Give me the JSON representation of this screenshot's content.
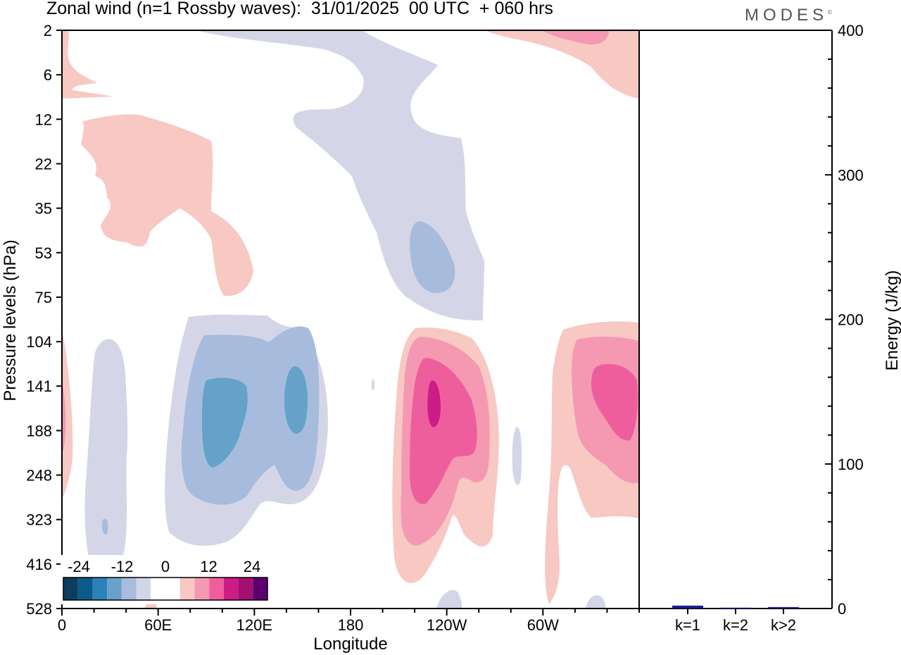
{
  "header": {
    "title": "Zonal wind (n=1 Rossby waves):  31/01/2025  00 UTC  + 060 hrs",
    "logo": "MODES"
  },
  "chart_data": [
    {
      "type": "heatmap",
      "title": "Zonal wind (n=1 Rossby waves):  31/01/2025  00 UTC  + 060 hrs",
      "xlabel": "Longitude",
      "ylabel": "Pressure levels (hPa)",
      "x_ticks": [
        "0",
        "60E",
        "120E",
        "180",
        "120W",
        "60W"
      ],
      "y_levels": [
        2,
        6,
        12,
        22,
        35,
        53,
        75,
        104,
        141,
        188,
        248,
        323,
        416,
        528
      ],
      "y_scale": "log (sigma-pressure levels), top = 2 hPa",
      "colorbar": {
        "tick_labels": [
          "-24",
          "-12",
          "0",
          "12",
          "24"
        ],
        "colors": [
          "#0d3d5c",
          "#0a5a8a",
          "#2b82bb",
          "#69a1cb",
          "#a8bcdd",
          "#d4d6e8",
          "#ffffff",
          "#ffffff",
          "#f8c8c3",
          "#f598b2",
          "#ef5e9c",
          "#cd1b88",
          "#a2116f",
          "#5c0070"
        ]
      },
      "features": [
        {
          "name": "negative upper-level band",
          "lon_range": [
            "90E",
            "120W"
          ],
          "level_range_hPa": [
            2,
            75
          ],
          "min_value": -12
        },
        {
          "name": "positive upper-level band",
          "lon_range": [
            "10E",
            "60E"
          ],
          "level_range_hPa": [
            12,
            75
          ],
          "max_value": 6
        },
        {
          "name": "negative lower cell",
          "lon_range": [
            "40E",
            "160E"
          ],
          "level_range_hPa": [
            104,
            416
          ],
          "min_value": -18
        },
        {
          "name": "positive lower cell A",
          "lon_range": [
            "160W",
            "80W"
          ],
          "level_range_hPa": [
            104,
            450
          ],
          "max_value": 20
        },
        {
          "name": "positive lower cell B",
          "lon_range": [
            "60W",
            "0"
          ],
          "level_range_hPa": [
            104,
            500
          ],
          "max_value": 15
        }
      ]
    },
    {
      "type": "bar",
      "ylabel": "Energy (J/kg)",
      "ylim": [
        0,
        400
      ],
      "y_ticks": [
        0,
        100,
        200,
        300,
        400
      ],
      "categories": [
        "k=1",
        "k=2",
        "k>2"
      ],
      "values": [
        2.0,
        0.6,
        1.0
      ],
      "bar_color": "#1a1a8c"
    }
  ]
}
